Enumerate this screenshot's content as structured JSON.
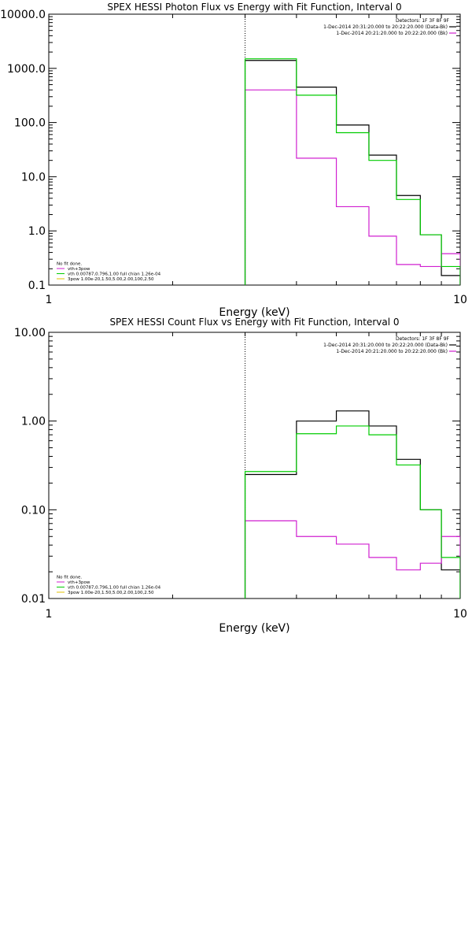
{
  "chart_data": [
    {
      "type": "line",
      "title": "SPEX HESSI Photon Flux vs Energy with Fit Function, Interval 0",
      "xlabel": "Energy (keV)",
      "ylabel": "",
      "xscale": "log",
      "yscale": "log",
      "xlim": [
        1,
        10
      ],
      "ylim": [
        0.1,
        10000
      ],
      "x_tick_labels": [
        "1",
        "10"
      ],
      "y_tick_labels": [
        "0.1",
        "1.0",
        "10.0",
        "100.0",
        "1000.0",
        "10000.0"
      ],
      "y_ticks": [
        0.1,
        1,
        10,
        100,
        1000,
        10000
      ],
      "vline": 3,
      "legend_header": "Detectors: 1F 3F 8F 9F",
      "legend": [
        {
          "label": "1-Dec-2014 20:31:20.000 to 20:22:20.000 (Data-Bk)",
          "color": "#000000"
        },
        {
          "label": "1-Dec-2014 20:21:20.000 to 20:22:20.000 (Bk)",
          "color": "#d020d0"
        }
      ],
      "info_lines": [
        {
          "label": "No fit done.",
          "color": "#000000"
        },
        {
          "label": "vth+3pow",
          "color": "#d020d0"
        },
        {
          "label": "vth 0.00787,0.796,1.00  full chian 1.26e-04",
          "color": "#00cc00"
        },
        {
          "label": "3pow 1.00e-20,1.50,5.00,2.00,100,2.50",
          "color": "#e0c000"
        }
      ],
      "edges": [
        3,
        4,
        5,
        6,
        7,
        8,
        9,
        10
      ],
      "series": [
        {
          "name": "Data-Bk",
          "color": "#000000",
          "values": [
            1400,
            450,
            90,
            25,
            4.5,
            0.85,
            0.15
          ]
        },
        {
          "name": "Bk",
          "color": "#d020d0",
          "values": [
            400,
            22,
            2.8,
            0.8,
            0.24,
            0.22,
            0.38
          ]
        },
        {
          "name": "vth+3pow",
          "color": "#00cc00",
          "values": [
            1500,
            320,
            65,
            20,
            3.8,
            0.85,
            0.22
          ]
        }
      ]
    },
    {
      "type": "line",
      "title": "SPEX HESSI Count Flux vs Energy with Fit Function, Interval 0",
      "xlabel": "Energy (keV)",
      "ylabel": "",
      "xscale": "log",
      "yscale": "log",
      "xlim": [
        1,
        10
      ],
      "ylim": [
        0.01,
        10
      ],
      "x_tick_labels": [
        "1",
        "10"
      ],
      "y_tick_labels": [
        "0.01",
        "0.10",
        "1.00",
        "10.00"
      ],
      "y_ticks": [
        0.01,
        0.1,
        1,
        10
      ],
      "vline": 3,
      "legend_header": "Detectors: 1F 3F 8F 9F",
      "legend": [
        {
          "label": "1-Dec-2014 20:31:20.000 to 20:22:20.000 (Data-Bk)",
          "color": "#000000"
        },
        {
          "label": "1-Dec-2014 20:21:20.000 to 20:22:20.000 (Bk)",
          "color": "#d020d0"
        }
      ],
      "info_lines": [
        {
          "label": "No fit done.",
          "color": "#000000"
        },
        {
          "label": "vth+3pow",
          "color": "#d020d0"
        },
        {
          "label": "vth 0.00787,0.796,1.00  full chian 1.26e-04",
          "color": "#00cc00"
        },
        {
          "label": "3pow 1.00e-20,1.50,5.00,2.00,100,2.50",
          "color": "#e0c000"
        }
      ],
      "edges": [
        3,
        4,
        5,
        6,
        7,
        8,
        9,
        10
      ],
      "series": [
        {
          "name": "Data-Bk",
          "color": "#000000",
          "values": [
            0.25,
            1.0,
            1.3,
            0.88,
            0.37,
            0.1,
            0.021
          ]
        },
        {
          "name": "Bk",
          "color": "#d020d0",
          "values": [
            0.075,
            0.05,
            0.041,
            0.029,
            0.021,
            0.025,
            0.05
          ]
        },
        {
          "name": "vth+3pow",
          "color": "#00cc00",
          "values": [
            0.27,
            0.72,
            0.88,
            0.7,
            0.32,
            0.1,
            0.029
          ]
        }
      ]
    }
  ]
}
